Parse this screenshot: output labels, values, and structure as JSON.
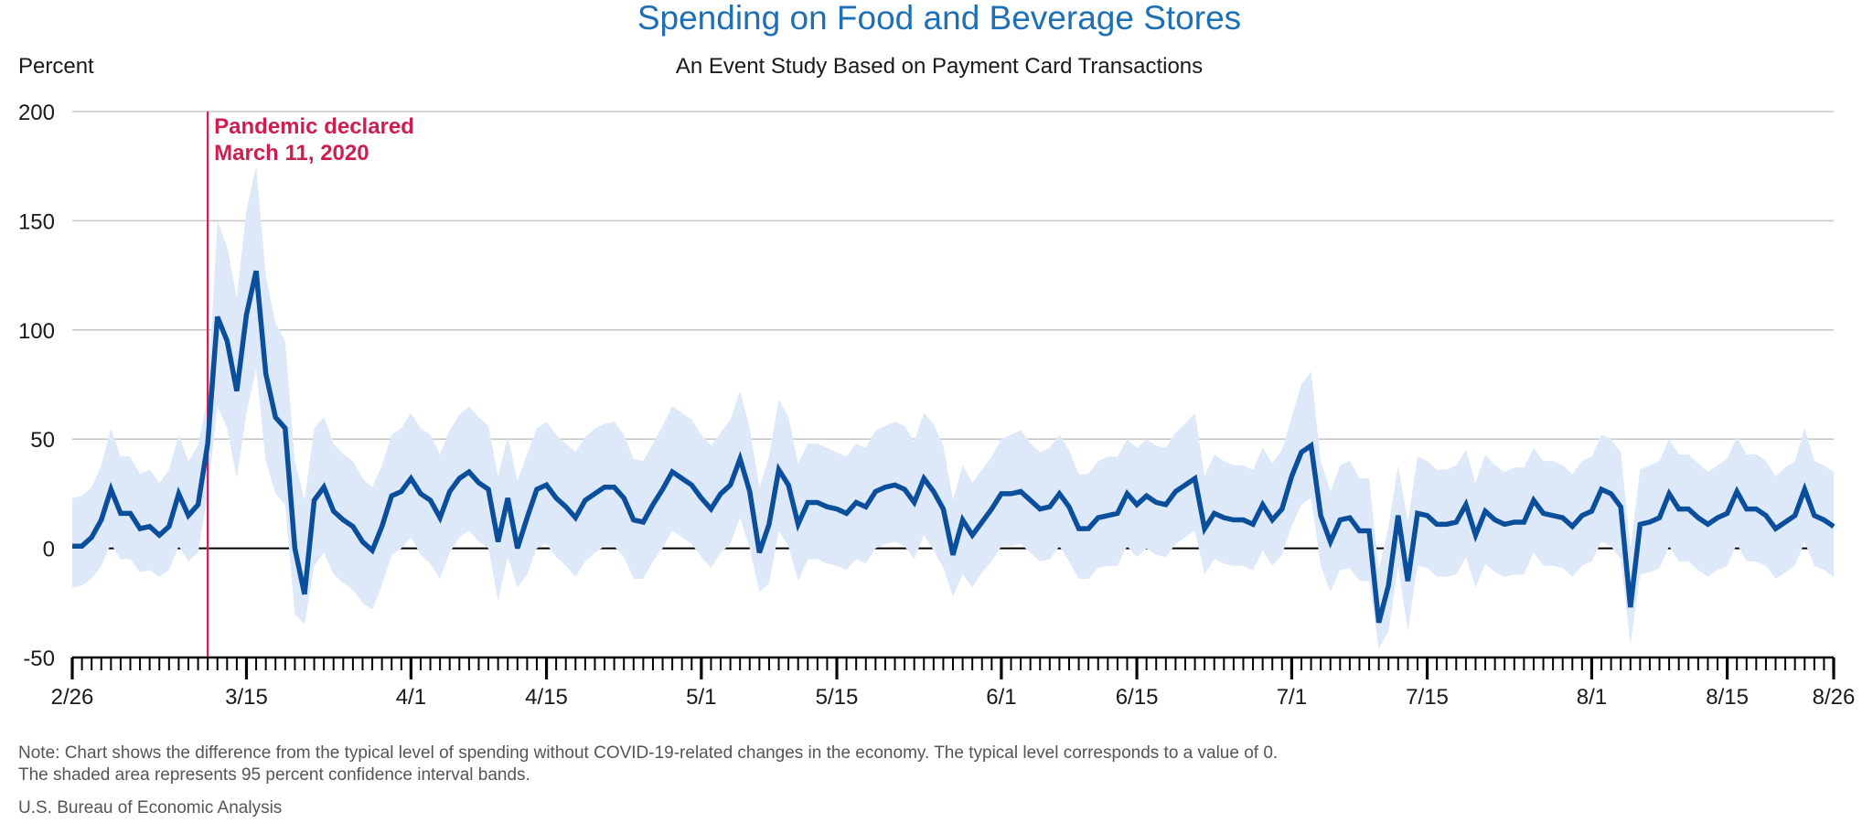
{
  "chart_data": {
    "type": "line",
    "title": "Spending on Food and Beverage Stores",
    "subtitle": "An Event Study Based on Payment Card Transactions",
    "ylabel": "Percent",
    "ylim": [
      -50,
      200
    ],
    "yticks": [
      200,
      150,
      100,
      50,
      0,
      -50
    ],
    "x_start_date": "2020-02-26",
    "x_end_date": "2020-08-26",
    "xticks": [
      {
        "label": "2/26",
        "date": "2020-02-26"
      },
      {
        "label": "3/15",
        "date": "2020-03-15"
      },
      {
        "label": "4/1",
        "date": "2020-04-01"
      },
      {
        "label": "4/15",
        "date": "2020-04-15"
      },
      {
        "label": "5/1",
        "date": "2020-05-01"
      },
      {
        "label": "5/15",
        "date": "2020-05-15"
      },
      {
        "label": "6/1",
        "date": "2020-06-01"
      },
      {
        "label": "6/15",
        "date": "2020-06-15"
      },
      {
        "label": "7/1",
        "date": "2020-07-01"
      },
      {
        "label": "7/15",
        "date": "2020-07-15"
      },
      {
        "label": "8/1",
        "date": "2020-08-01"
      },
      {
        "label": "8/15",
        "date": "2020-08-15"
      },
      {
        "label": "8/26",
        "date": "2020-08-26"
      }
    ],
    "grid": true,
    "legend": "none",
    "colors": {
      "line": "#0b4f9c",
      "band": "#dde9f8",
      "annotation": "#cc1f4f",
      "grid": "#c8c8c8",
      "axis": "#000000",
      "title": "#1f6fb5"
    },
    "event_line": {
      "date": "2020-03-11",
      "label_line1": "Pandemic declared",
      "label_line2": "March 11, 2020"
    },
    "series": [
      {
        "values": [
          1,
          1,
          5,
          13,
          27,
          16,
          16,
          9,
          10,
          6,
          10,
          25,
          15,
          20,
          48,
          106,
          95,
          72,
          107,
          127,
          80,
          60,
          55,
          0,
          -21,
          22,
          28,
          17,
          13,
          10,
          3,
          -1,
          10,
          24,
          26,
          32,
          25,
          22,
          14,
          26,
          32,
          35,
          30,
          27,
          3,
          23,
          0,
          14,
          27,
          29,
          23,
          19,
          14,
          22,
          25,
          28,
          28,
          23,
          13,
          12,
          20,
          27,
          35,
          32,
          29,
          23,
          18,
          25,
          29,
          41,
          26,
          -2,
          11,
          36,
          29,
          11,
          21,
          21,
          19,
          18,
          16,
          21,
          19,
          26,
          28,
          29,
          27,
          21,
          32,
          26,
          18,
          -3,
          13,
          6,
          12,
          18,
          25,
          25,
          26,
          22,
          18,
          19,
          25,
          19,
          9,
          9,
          14,
          15,
          16,
          25,
          20,
          24,
          21,
          20,
          26,
          29,
          32,
          9,
          16,
          14,
          13,
          13,
          11,
          20,
          13,
          18,
          33,
          44,
          47,
          15,
          3,
          13,
          14,
          8,
          8,
          -34,
          -17,
          15,
          -15,
          16,
          15,
          11,
          11,
          12,
          20,
          6,
          17,
          13,
          11,
          12,
          12,
          22,
          16,
          15,
          14,
          10,
          15,
          17,
          27,
          25,
          19,
          -27,
          11,
          12,
          14,
          25,
          18,
          18,
          14,
          11,
          14,
          16,
          26,
          18,
          18,
          15,
          9,
          12,
          15,
          27,
          15,
          13,
          10
        ]
      }
    ],
    "band_upper": [
      23,
      24,
      28,
      38,
      55,
      42,
      42,
      34,
      36,
      30,
      36,
      52,
      40,
      47,
      70,
      150,
      138,
      115,
      155,
      175,
      125,
      103,
      95,
      40,
      22,
      55,
      60,
      48,
      43,
      40,
      32,
      28,
      38,
      52,
      55,
      62,
      55,
      52,
      43,
      54,
      61,
      65,
      60,
      56,
      33,
      51,
      31,
      43,
      55,
      58,
      52,
      48,
      44,
      51,
      55,
      57,
      58,
      52,
      41,
      40,
      48,
      56,
      65,
      62,
      59,
      52,
      47,
      53,
      59,
      72,
      55,
      28,
      42,
      68,
      60,
      39,
      48,
      48,
      46,
      44,
      42,
      48,
      46,
      54,
      56,
      58,
      56,
      49,
      62,
      57,
      47,
      22,
      38,
      30,
      36,
      42,
      50,
      52,
      54,
      48,
      44,
      46,
      52,
      45,
      34,
      34,
      40,
      42,
      42,
      50,
      46,
      50,
      47,
      46,
      53,
      57,
      62,
      33,
      43,
      40,
      38,
      38,
      36,
      46,
      39,
      45,
      60,
      75,
      81,
      40,
      26,
      38,
      40,
      32,
      32,
      -10,
      10,
      38,
      12,
      42,
      40,
      36,
      36,
      38,
      45,
      30,
      43,
      38,
      35,
      37,
      37,
      46,
      40,
      40,
      38,
      34,
      40,
      42,
      52,
      50,
      44,
      0,
      36,
      38,
      40,
      50,
      43,
      43,
      39,
      35,
      38,
      41,
      51,
      43,
      43,
      40,
      33,
      37,
      40,
      55,
      40,
      38,
      35
    ],
    "band_lower": [
      -18,
      -17,
      -14,
      -8,
      2,
      -5,
      -5,
      -11,
      -10,
      -13,
      -10,
      1,
      -6,
      -2,
      25,
      65,
      55,
      32,
      62,
      82,
      40,
      25,
      20,
      -30,
      -35,
      -8,
      -2,
      -12,
      -16,
      -19,
      -25,
      -28,
      -17,
      -3,
      0,
      5,
      -3,
      -7,
      -14,
      -2,
      5,
      8,
      3,
      0,
      -24,
      -4,
      -18,
      -12,
      0,
      2,
      -4,
      -8,
      -13,
      -6,
      -2,
      1,
      1,
      -4,
      -14,
      -14,
      -6,
      0,
      8,
      5,
      2,
      -4,
      -9,
      -2,
      2,
      14,
      0,
      -20,
      -16,
      8,
      1,
      -15,
      -5,
      -5,
      -7,
      -8,
      -10,
      -5,
      -7,
      0,
      2,
      3,
      1,
      -5,
      6,
      -1,
      -9,
      -22,
      -12,
      -18,
      -11,
      -6,
      1,
      1,
      2,
      -2,
      -6,
      -5,
      1,
      -6,
      -14,
      -14,
      -9,
      -8,
      -8,
      1,
      -4,
      0,
      -3,
      -4,
      2,
      5,
      8,
      -12,
      -5,
      -7,
      -8,
      -8,
      -10,
      -1,
      -8,
      -3,
      10,
      20,
      23,
      -8,
      -20,
      -10,
      -9,
      -15,
      -15,
      -46,
      -38,
      -8,
      -38,
      -8,
      -9,
      -13,
      -13,
      -12,
      -4,
      -18,
      -7,
      -11,
      -13,
      -12,
      -12,
      -2,
      -8,
      -8,
      -9,
      -13,
      -8,
      -6,
      3,
      1,
      -5,
      -44,
      -12,
      -11,
      -9,
      1,
      -6,
      -6,
      -10,
      -13,
      -10,
      -8,
      2,
      -6,
      -6,
      -8,
      -14,
      -11,
      -8,
      3,
      -8,
      -10,
      -13
    ]
  },
  "footer": {
    "note_line1": "Note: Chart shows the difference from the typical level of spending without COVID-19-related changes in the economy. The typical level corresponds to a value of 0.",
    "note_line2": "The shaded area represents 95 percent confidence interval bands.",
    "source": "U.S. Bureau of Economic Analysis"
  }
}
